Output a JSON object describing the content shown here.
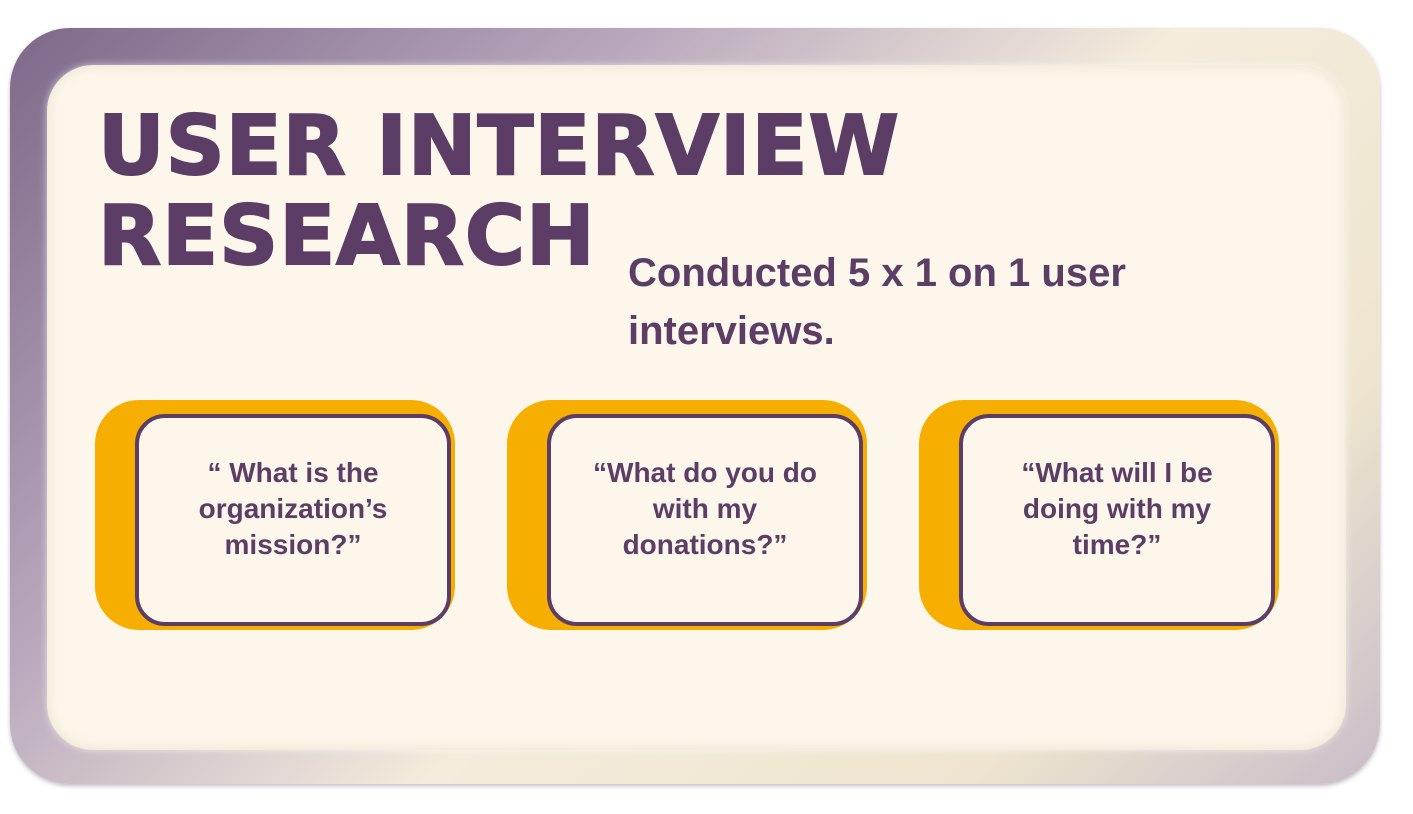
{
  "slide": {
    "title_line1": "USER INTERVIEW",
    "title_line2": "RESEARCH",
    "subtitle": "Conducted 5 x 1 on 1 user interviews."
  },
  "questions": [
    {
      "text": "“ What is the organization’s mission?”"
    },
    {
      "text": "“What do you do with my donations?”"
    },
    {
      "text": "“What will I be doing with my time?”"
    }
  ],
  "colors": {
    "primary_purple": "#5c3d66",
    "accent_orange": "#f6ae00",
    "panel_cream": "#fcf7ea"
  }
}
